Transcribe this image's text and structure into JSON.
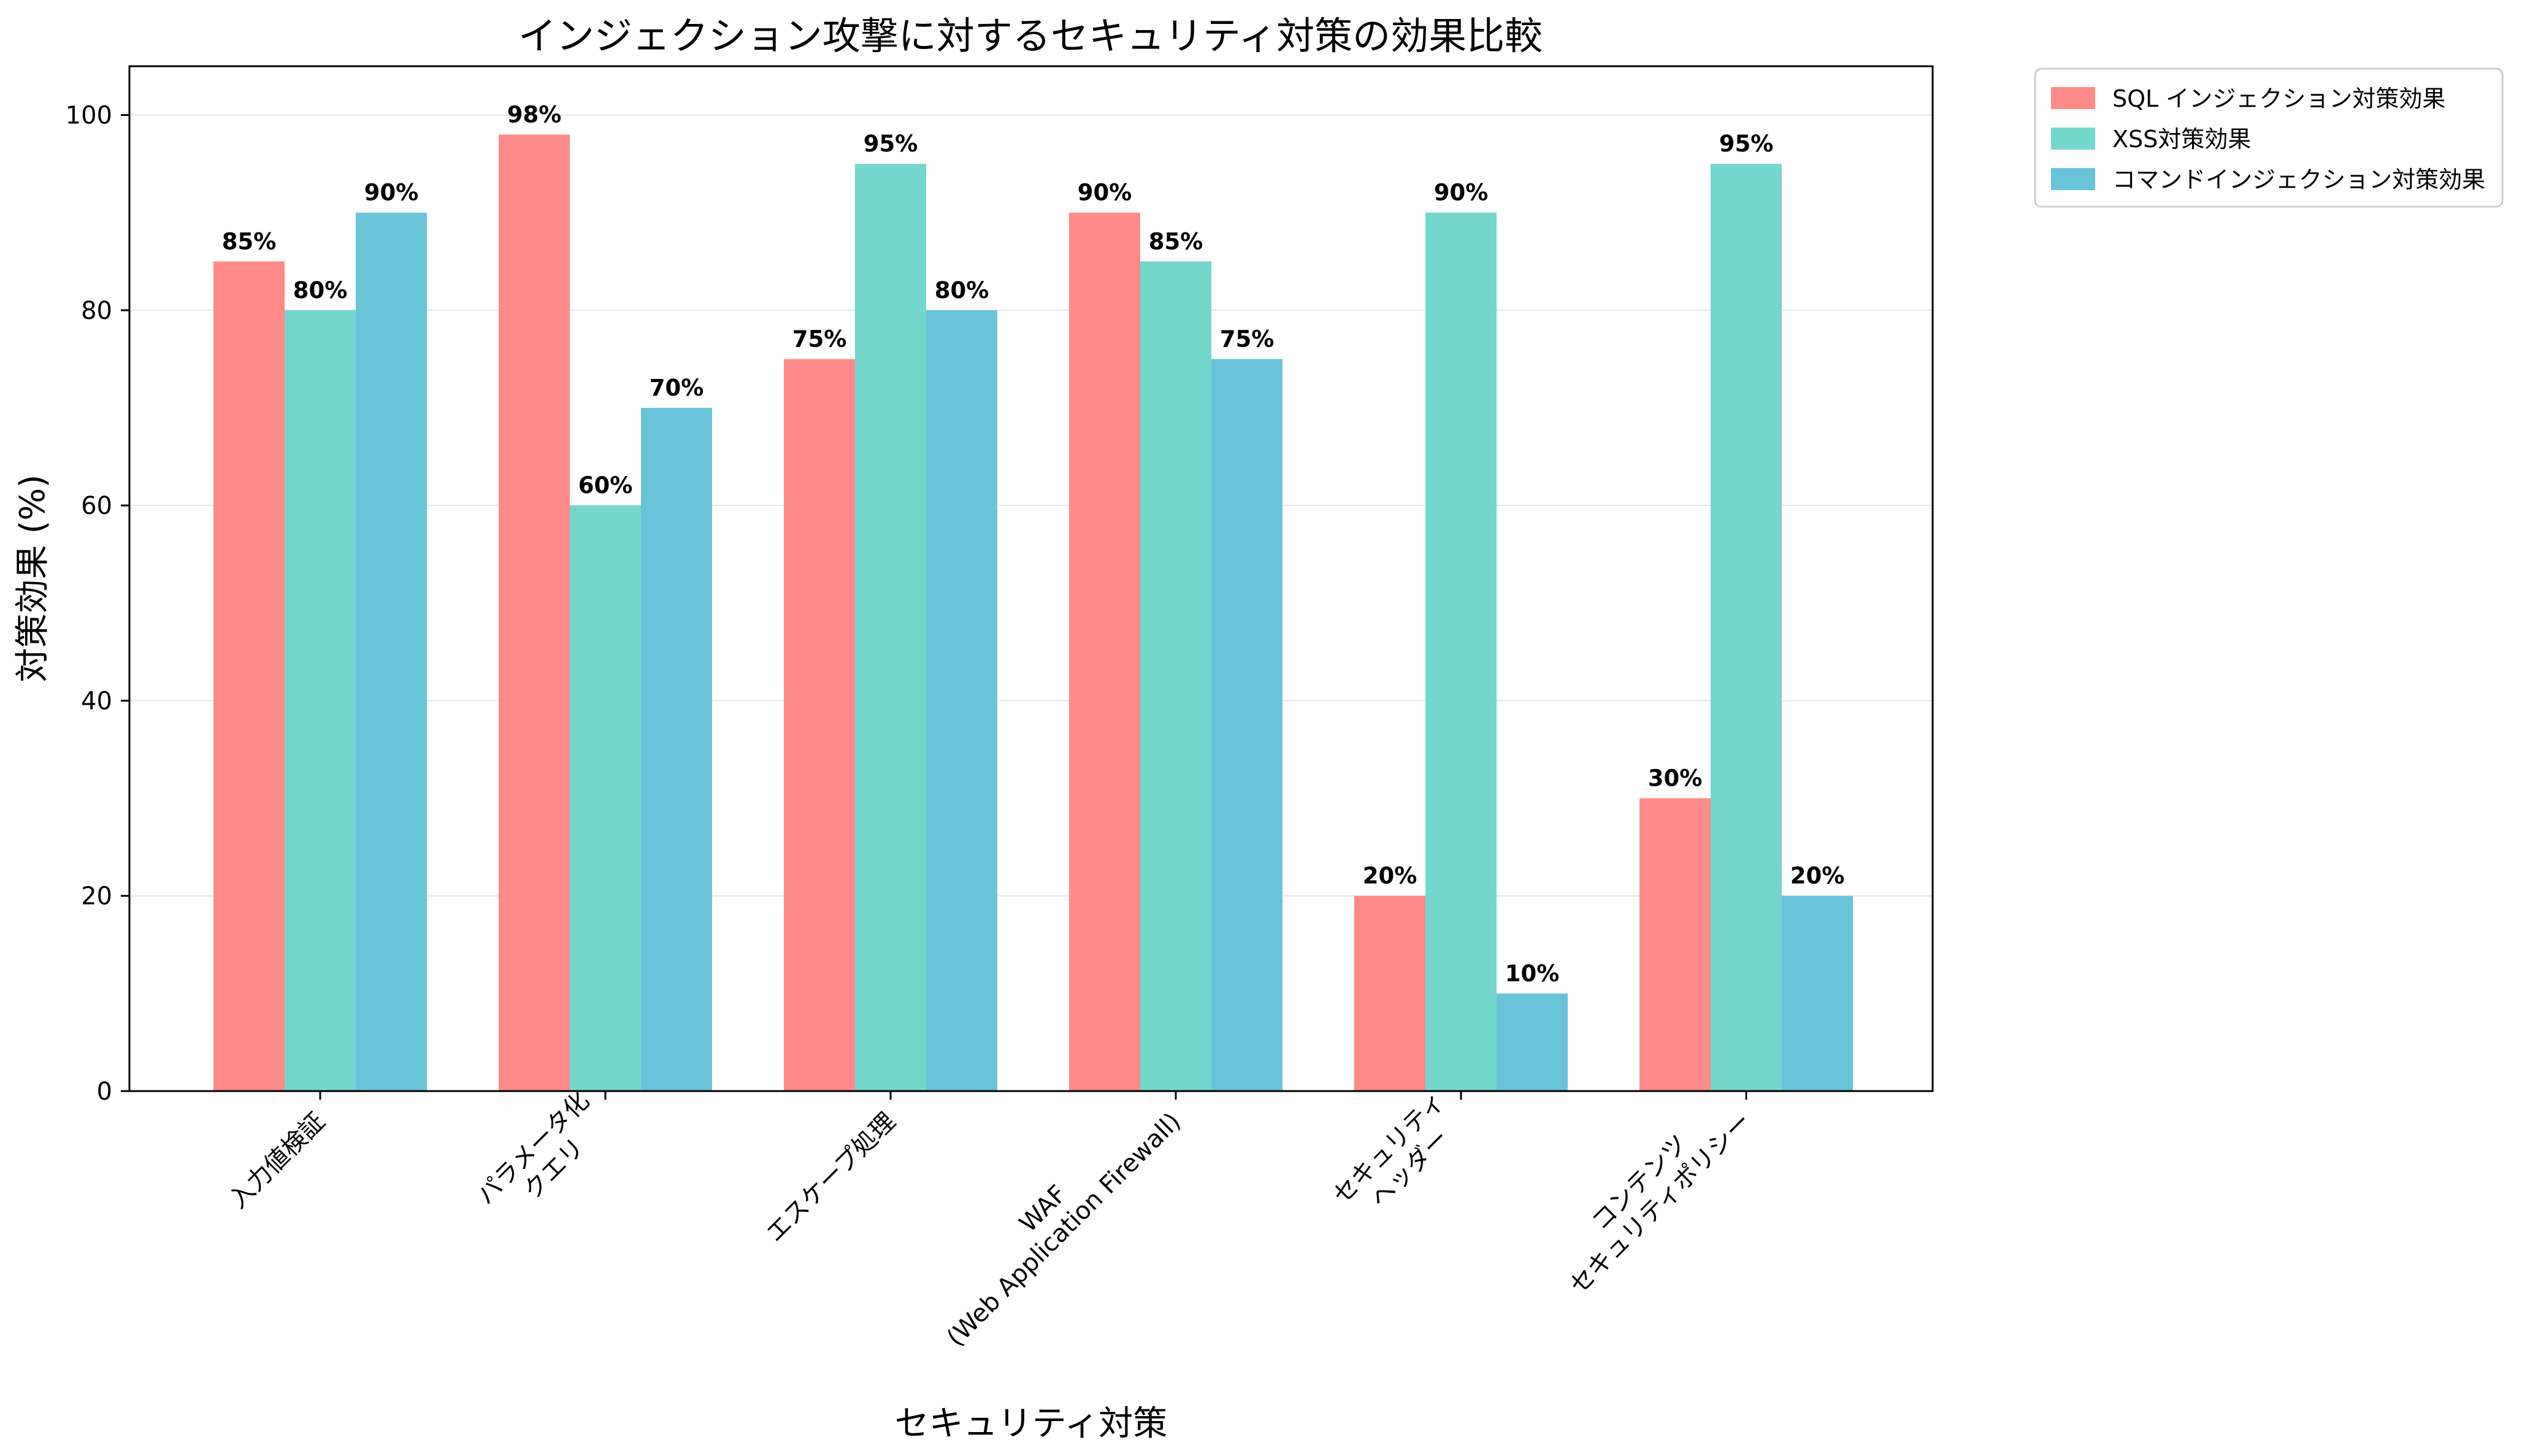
{
  "chart_data": {
    "type": "bar",
    "title": "インジェクション攻撃に対するセキュリティ対策の効果比較",
    "xlabel": "セキュリティ対策",
    "ylabel": "対策効果 (%)",
    "ylim": [
      0,
      105
    ],
    "yticks": [
      0,
      20,
      40,
      60,
      80,
      100
    ],
    "grid": true,
    "legend_position": "outside top-right",
    "categories": [
      [
        "入力値検証"
      ],
      [
        "パラメータ化",
        "クエリ"
      ],
      [
        "エスケープ処理"
      ],
      [
        "WAF",
        "(Web Application Firewall)"
      ],
      [
        "セキュリティ",
        "ヘッダー"
      ],
      [
        "コンテンツ",
        "セキュリティポリシー"
      ]
    ],
    "series": [
      {
        "name": "SQL インジェクション対策効果",
        "color": "#FF8A87",
        "values": [
          85,
          98,
          75,
          90,
          20,
          30
        ],
        "labels": [
          "85%",
          "98%",
          "75%",
          "90%",
          "20%",
          "30%"
        ]
      },
      {
        "name": "XSS対策効果",
        "color": "#74D7CE",
        "values": [
          80,
          60,
          95,
          85,
          90,
          95
        ],
        "labels": [
          "80%",
          "60%",
          "95%",
          "85%",
          "90%",
          "95%"
        ]
      },
      {
        "name": "コマンドインジェクション対策効果",
        "color": "#6AC4D9",
        "values": [
          90,
          70,
          80,
          75,
          10,
          20
        ],
        "labels": [
          "90%",
          "70%",
          "80%",
          "75%",
          "10%",
          "20%"
        ]
      }
    ]
  }
}
